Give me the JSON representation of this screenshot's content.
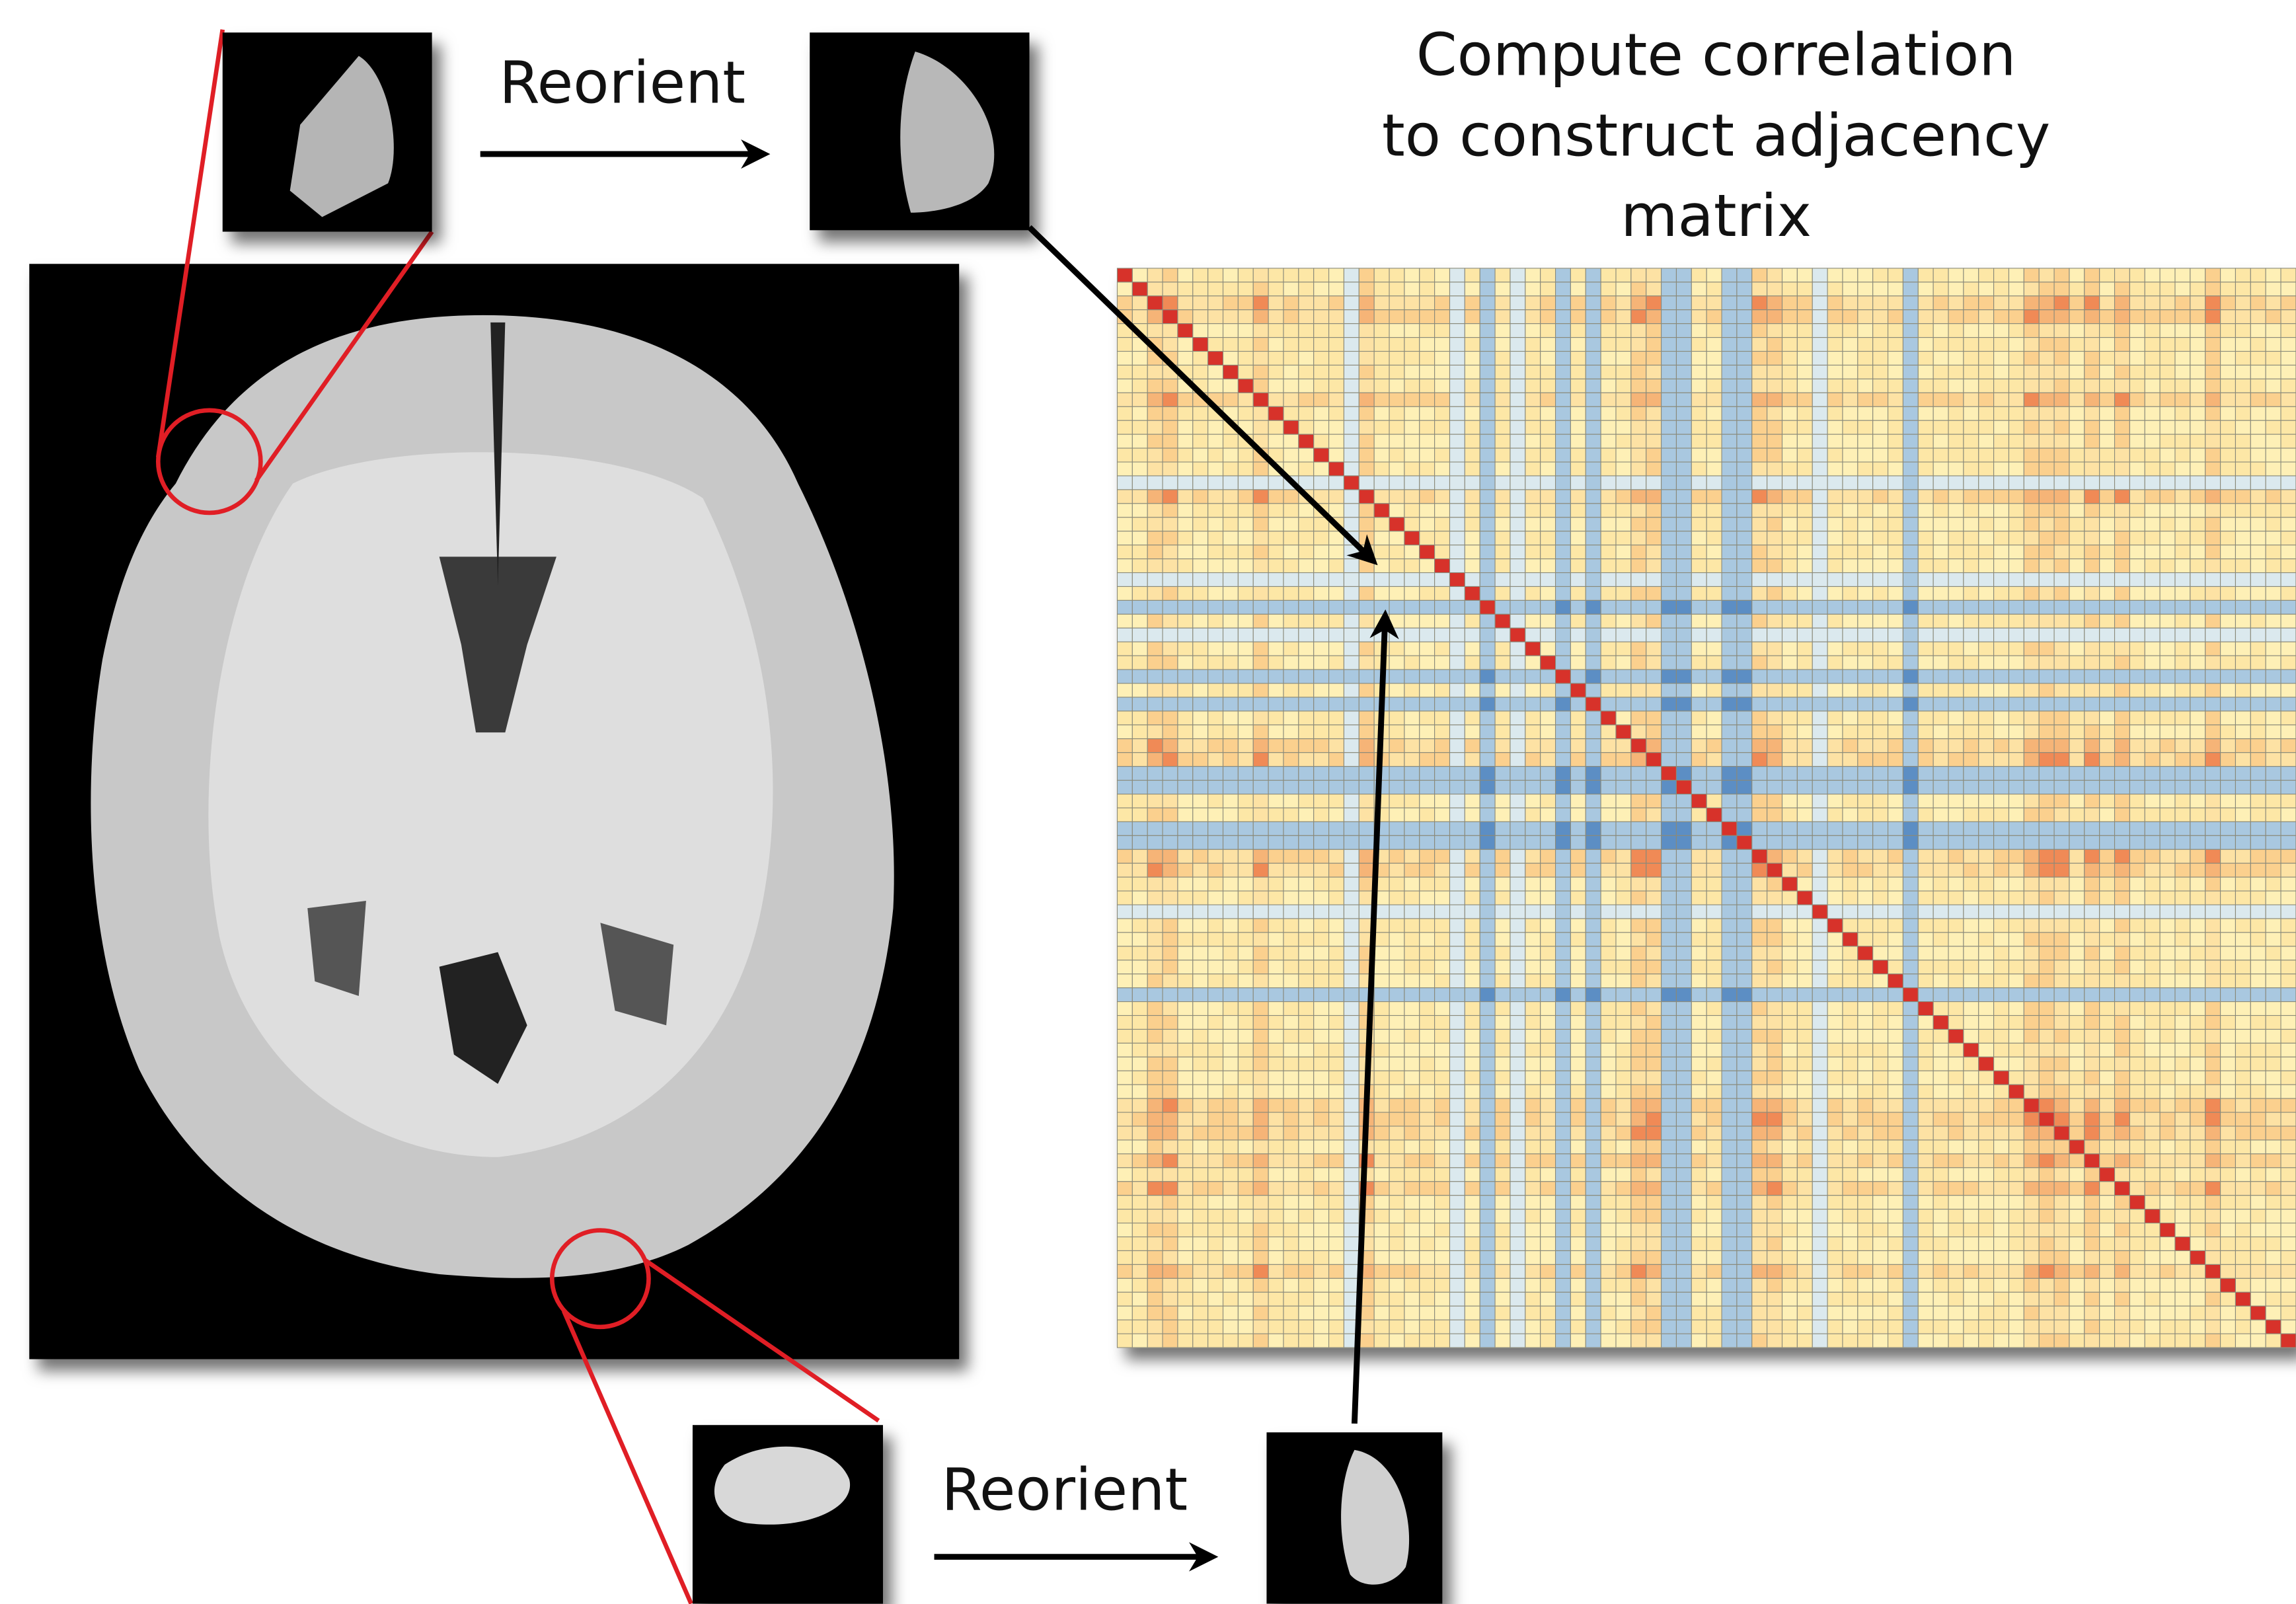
{
  "annotations": {
    "reorient_top": "Reorient",
    "reorient_bottom": "Reorient",
    "title_lines": [
      "Compute correlation",
      "to construct adjacency",
      "matrix"
    ]
  }
}
